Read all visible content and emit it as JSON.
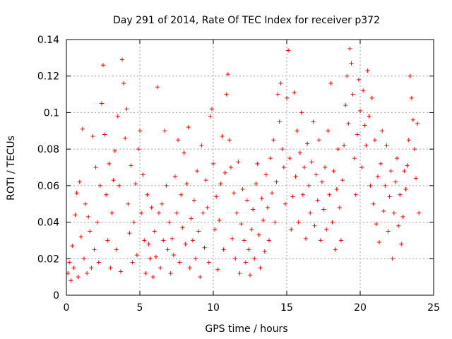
{
  "chart_data": {
    "type": "scatter",
    "title": "Day 291 of 2014, Rate Of TEC Index for receiver p372",
    "xlabel": "GPS time / hours",
    "ylabel": "ROTI / TECUs",
    "xlim": [
      0,
      25
    ],
    "ylim": [
      0,
      0.14
    ],
    "x_ticks": [
      0,
      5,
      10,
      15,
      20,
      25
    ],
    "x_tick_labels": [
      "0",
      "5",
      "10",
      "15",
      "20",
      "25"
    ],
    "y_ticks": [
      0,
      0.02,
      0.04,
      0.06,
      0.08,
      0.1,
      0.12,
      0.14
    ],
    "y_tick_labels": [
      "0",
      "0.02",
      "0.04",
      "0.06",
      "0.08",
      "0.1",
      "0.12",
      "0.14"
    ],
    "grid": true,
    "marker": "+",
    "color": "#ff0000",
    "series": [
      {
        "points": [
          [
            0.1,
            0.012
          ],
          [
            0.2,
            0.018
          ],
          [
            0.3,
            0.008
          ],
          [
            0.4,
            0.027
          ],
          [
            0.5,
            0.015
          ],
          [
            0.6,
            0.044
          ],
          [
            0.7,
            0.056
          ],
          [
            0.8,
            0.01
          ],
          [
            0.9,
            0.062
          ],
          [
            1.0,
            0.032
          ],
          [
            1.1,
            0.091
          ],
          [
            1.2,
            0.02
          ],
          [
            1.3,
            0.05
          ],
          [
            1.4,
            0.012
          ],
          [
            1.5,
            0.043
          ],
          [
            1.6,
            0.035
          ],
          [
            1.7,
            0.015
          ],
          [
            1.8,
            0.087
          ],
          [
            1.9,
            0.025
          ],
          [
            2.0,
            0.07
          ],
          [
            2.1,
            0.04
          ],
          [
            2.2,
            0.018
          ],
          [
            2.3,
            0.06
          ],
          [
            2.4,
            0.105
          ],
          [
            2.5,
            0.126
          ],
          [
            2.6,
            0.088
          ],
          [
            2.7,
            0.055
          ],
          [
            2.8,
            0.03
          ],
          [
            2.9,
            0.072
          ],
          [
            3.0,
            0.015
          ],
          [
            3.1,
            0.045
          ],
          [
            3.2,
            0.063
          ],
          [
            3.3,
            0.079
          ],
          [
            3.4,
            0.025
          ],
          [
            3.5,
            0.098
          ],
          [
            3.6,
            0.06
          ],
          [
            3.7,
            0.013
          ],
          [
            3.8,
            0.129
          ],
          [
            3.9,
            0.116
          ],
          [
            4.0,
            0.086
          ],
          [
            4.1,
            0.102
          ],
          [
            4.2,
            0.05
          ],
          [
            4.3,
            0.034
          ],
          [
            4.4,
            0.071
          ],
          [
            4.5,
            0.018
          ],
          [
            4.6,
            0.04
          ],
          [
            4.7,
            0.061
          ],
          [
            4.8,
            0.022
          ],
          [
            4.9,
            0.08
          ],
          [
            5.0,
            0.09
          ],
          [
            5.1,
            0.045
          ],
          [
            5.2,
            0.066
          ],
          [
            5.3,
            0.03
          ],
          [
            5.4,
            0.012
          ],
          [
            5.5,
            0.055
          ],
          [
            5.6,
            0.028
          ],
          [
            5.7,
            0.02
          ],
          [
            5.8,
            0.048
          ],
          [
            5.9,
            0.01
          ],
          [
            6.0,
            0.035
          ],
          [
            6.1,
            0.021
          ],
          [
            6.2,
            0.114
          ],
          [
            6.3,
            0.045
          ],
          [
            6.4,
            0.015
          ],
          [
            6.5,
            0.05
          ],
          [
            6.6,
            0.03
          ],
          [
            6.7,
            0.09
          ],
          [
            6.8,
            0.06
          ],
          [
            6.9,
            0.025
          ],
          [
            7.0,
            0.04
          ],
          [
            7.1,
            0.012
          ],
          [
            7.2,
            0.031
          ],
          [
            7.3,
            0.022
          ],
          [
            7.4,
            0.065
          ],
          [
            7.5,
            0.045
          ],
          [
            7.6,
            0.085
          ],
          [
            7.7,
            0.018
          ],
          [
            7.8,
            0.055
          ],
          [
            7.9,
            0.037
          ],
          [
            8.0,
            0.078
          ],
          [
            8.1,
            0.028
          ],
          [
            8.2,
            0.061
          ],
          [
            8.3,
            0.092
          ],
          [
            8.4,
            0.015
          ],
          [
            8.5,
            0.042
          ],
          [
            8.6,
            0.03
          ],
          [
            8.7,
            0.052
          ],
          [
            8.8,
            0.02
          ],
          [
            8.9,
            0.068
          ],
          [
            9.0,
            0.035
          ],
          [
            9.1,
            0.01
          ],
          [
            9.2,
            0.082
          ],
          [
            9.3,
            0.045
          ],
          [
            9.4,
            0.026
          ],
          [
            9.5,
            0.063
          ],
          [
            9.6,
            0.048
          ],
          [
            9.7,
            0.018
          ],
          [
            9.8,
            0.098
          ],
          [
            9.9,
            0.102
          ],
          [
            10.0,
            0.072
          ],
          [
            10.1,
            0.036
          ],
          [
            10.2,
            0.054
          ],
          [
            10.3,
            0.014
          ],
          [
            10.4,
            0.041
          ],
          [
            10.5,
            0.061
          ],
          [
            10.6,
            0.087
          ],
          [
            10.7,
            0.025
          ],
          [
            10.8,
            0.067
          ],
          [
            10.9,
            0.11
          ],
          [
            11.0,
            0.121
          ],
          [
            11.1,
            0.085
          ],
          [
            11.2,
            0.07
          ],
          [
            11.3,
            0.031
          ],
          [
            11.4,
            0.056
          ],
          [
            11.5,
            0.02
          ],
          [
            11.6,
            0.045
          ],
          [
            11.7,
            0.073
          ],
          [
            11.8,
            0.012
          ],
          [
            11.9,
            0.039
          ],
          [
            12.0,
            0.058
          ],
          [
            12.1,
            0.03
          ],
          [
            12.2,
            0.018
          ],
          [
            12.3,
            0.052
          ],
          [
            12.4,
            0.025
          ],
          [
            12.5,
            0.011
          ],
          [
            12.6,
            0.036
          ],
          [
            12.7,
            0.047
          ],
          [
            12.8,
            0.02
          ],
          [
            12.9,
            0.061
          ],
          [
            13.0,
            0.072
          ],
          [
            13.1,
            0.033
          ],
          [
            13.2,
            0.015
          ],
          [
            13.3,
            0.053
          ],
          [
            13.4,
            0.041
          ],
          [
            13.5,
            0.024
          ],
          [
            13.6,
            0.066
          ],
          [
            13.7,
            0.048
          ],
          [
            13.8,
            0.03
          ],
          [
            13.9,
            0.075
          ],
          [
            14.0,
            0.056
          ],
          [
            14.1,
            0.085
          ],
          [
            14.2,
            0.04
          ],
          [
            14.3,
            0.062
          ],
          [
            14.4,
            0.11
          ],
          [
            14.5,
            0.095
          ],
          [
            14.6,
            0.116
          ],
          [
            14.7,
            0.08
          ],
          [
            14.8,
            0.07
          ],
          [
            14.9,
            0.05
          ],
          [
            15.0,
            0.108
          ],
          [
            15.1,
            0.134
          ],
          [
            15.2,
            0.075
          ],
          [
            15.3,
            0.036
          ],
          [
            15.4,
            0.054
          ],
          [
            15.5,
            0.111
          ],
          [
            15.6,
            0.065
          ],
          [
            15.7,
            0.09
          ],
          [
            15.8,
            0.04
          ],
          [
            15.9,
            0.078
          ],
          [
            16.0,
            0.1
          ],
          [
            16.1,
            0.055
          ],
          [
            16.2,
            0.07
          ],
          [
            16.3,
            0.031
          ],
          [
            16.4,
            0.083
          ],
          [
            16.5,
            0.06
          ],
          [
            16.6,
            0.045
          ],
          [
            16.7,
            0.073
          ],
          [
            16.8,
            0.095
          ],
          [
            16.9,
            0.038
          ],
          [
            17.0,
            0.066
          ],
          [
            17.1,
            0.052
          ],
          [
            17.2,
            0.085
          ],
          [
            17.3,
            0.03
          ],
          [
            17.4,
            0.062
          ],
          [
            17.5,
            0.047
          ],
          [
            17.6,
            0.07
          ],
          [
            17.7,
            0.036
          ],
          [
            17.8,
            0.09
          ],
          [
            17.9,
            0.055
          ],
          [
            18.0,
            0.116
          ],
          [
            18.1,
            0.04
          ],
          [
            18.2,
            0.068
          ],
          [
            18.3,
            0.025
          ],
          [
            18.4,
            0.058
          ],
          [
            18.5,
            0.08
          ],
          [
            18.6,
            0.048
          ],
          [
            18.7,
            0.03
          ],
          [
            18.8,
            0.063
          ],
          [
            18.9,
            0.082
          ],
          [
            19.0,
            0.104
          ],
          [
            19.1,
            0.12
          ],
          [
            19.2,
            0.094
          ],
          [
            19.3,
            0.135
          ],
          [
            19.4,
            0.127
          ],
          [
            19.5,
            0.11
          ],
          [
            19.6,
            0.075
          ],
          [
            19.7,
            0.055
          ],
          [
            19.8,
            0.088
          ],
          [
            19.9,
            0.118
          ],
          [
            20.0,
            0.101
          ],
          [
            20.1,
            0.07
          ],
          [
            20.2,
            0.112
          ],
          [
            20.3,
            0.093
          ],
          [
            20.4,
            0.082
          ],
          [
            20.5,
            0.123
          ],
          [
            20.6,
            0.098
          ],
          [
            20.7,
            0.06
          ],
          [
            20.8,
            0.108
          ],
          [
            20.9,
            0.05
          ],
          [
            21.0,
            0.085
          ],
          [
            21.1,
            0.039
          ],
          [
            21.2,
            0.065
          ],
          [
            21.3,
            0.029
          ],
          [
            21.4,
            0.072
          ],
          [
            21.5,
            0.09
          ],
          [
            21.6,
            0.046
          ],
          [
            21.7,
            0.06
          ],
          [
            21.8,
            0.082
          ],
          [
            21.9,
            0.035
          ],
          [
            22.0,
            0.054
          ],
          [
            22.1,
            0.068
          ],
          [
            22.2,
            0.02
          ],
          [
            22.3,
            0.045
          ],
          [
            22.4,
            0.062
          ],
          [
            22.5,
            0.075
          ],
          [
            22.6,
            0.038
          ],
          [
            22.7,
            0.055
          ],
          [
            22.8,
            0.028
          ],
          [
            22.9,
            0.043
          ],
          [
            23.0,
            0.068
          ],
          [
            23.1,
            0.058
          ],
          [
            23.2,
            0.071
          ],
          [
            23.3,
            0.085
          ],
          [
            23.4,
            0.12
          ],
          [
            23.5,
            0.108
          ],
          [
            23.6,
            0.096
          ],
          [
            23.7,
            0.08
          ],
          [
            23.8,
            0.064
          ],
          [
            23.9,
            0.094
          ],
          [
            24.0,
            0.045
          ]
        ]
      }
    ]
  }
}
